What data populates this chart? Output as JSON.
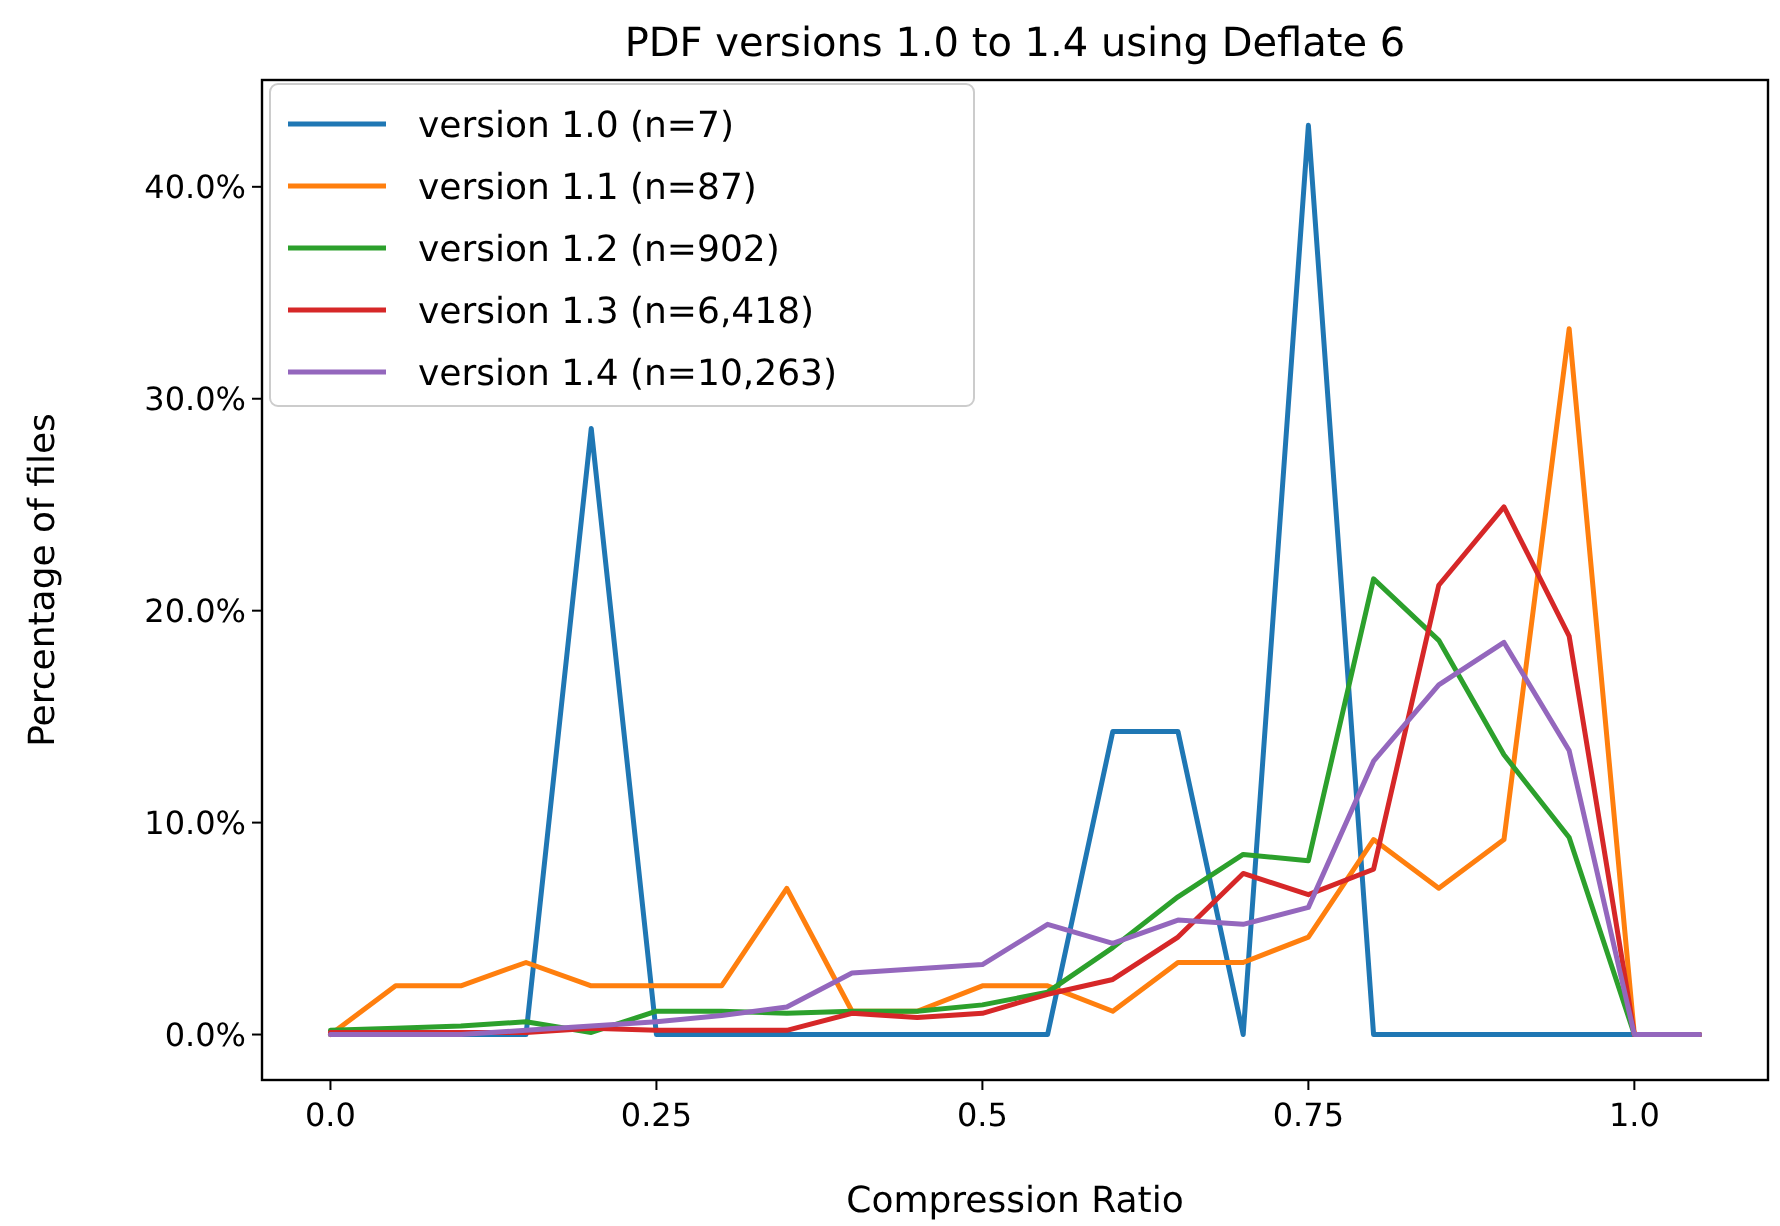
{
  "chart_data": {
    "type": "line",
    "title": "PDF versions 1.0 to 1.4 using Deflate 6",
    "xlabel": "Compression Ratio",
    "ylabel": "Percentage of files",
    "x": [
      0,
      0.05,
      0.1,
      0.15,
      0.2,
      0.25,
      0.3,
      0.35,
      0.4,
      0.45,
      0.5,
      0.55,
      0.6,
      0.65,
      0.7,
      0.75,
      0.8,
      0.85,
      0.9,
      0.95,
      1.0,
      1.05
    ],
    "series": [
      {
        "name": "version 1.0 (n=7)",
        "color": "#1f77b4",
        "values": [
          0,
          0,
          0,
          0,
          28.6,
          0,
          0,
          0,
          0,
          0,
          0,
          0,
          14.3,
          14.3,
          0,
          42.9,
          0,
          0,
          0,
          0,
          0,
          0
        ]
      },
      {
        "name": "version 1.1 (n=87)",
        "color": "#ff7f0e",
        "values": [
          0,
          2.3,
          2.3,
          3.4,
          2.3,
          2.3,
          2.3,
          6.9,
          1.1,
          1.1,
          2.3,
          2.3,
          1.1,
          3.4,
          3.4,
          4.6,
          9.2,
          6.9,
          9.2,
          33.3,
          0,
          0
        ]
      },
      {
        "name": "version 1.2 (n=902)",
        "color": "#2ca02c",
        "values": [
          0.2,
          0.3,
          0.4,
          0.6,
          0.1,
          1.1,
          1.1,
          1.0,
          1.1,
          1.1,
          1.4,
          2.0,
          4.1,
          6.5,
          8.5,
          8.2,
          21.5,
          18.6,
          13.2,
          9.3,
          0,
          0
        ]
      },
      {
        "name": "version 1.3 (n=6,418)",
        "color": "#d62728",
        "values": [
          0.1,
          0.1,
          0.1,
          0.1,
          0.3,
          0.2,
          0.2,
          0.2,
          1.0,
          0.8,
          1.0,
          1.9,
          2.6,
          4.6,
          7.6,
          6.6,
          7.8,
          21.2,
          24.9,
          18.8,
          0,
          0
        ]
      },
      {
        "name": "version 1.4 (n=10,263)",
        "color": "#9467bd",
        "values": [
          0,
          0,
          0,
          0.2,
          0.4,
          0.6,
          0.9,
          1.3,
          2.9,
          3.1,
          3.3,
          5.2,
          4.3,
          5.4,
          5.2,
          6.0,
          12.9,
          16.5,
          18.5,
          13.4,
          0,
          0
        ]
      }
    ],
    "xlim": [
      -0.0525,
      1.1025
    ],
    "xticks": [
      {
        "value": 0,
        "label": "0.0"
      },
      0.25,
      0.5,
      0.75,
      {
        "value": 1,
        "label": "1.0"
      }
    ],
    "ylim": [
      -2.145,
      45.04
    ],
    "yticks": [
      {
        "value": 0,
        "label": "0.0%"
      },
      {
        "value": 10,
        "label": "10.0%"
      },
      {
        "value": 20,
        "label": "20.0%"
      },
      {
        "value": 30,
        "label": "30.0%"
      },
      {
        "value": 40,
        "label": "40.0%"
      }
    ],
    "grid": false,
    "legend": "top left",
    "marker": "none",
    "line_style": "solid"
  }
}
